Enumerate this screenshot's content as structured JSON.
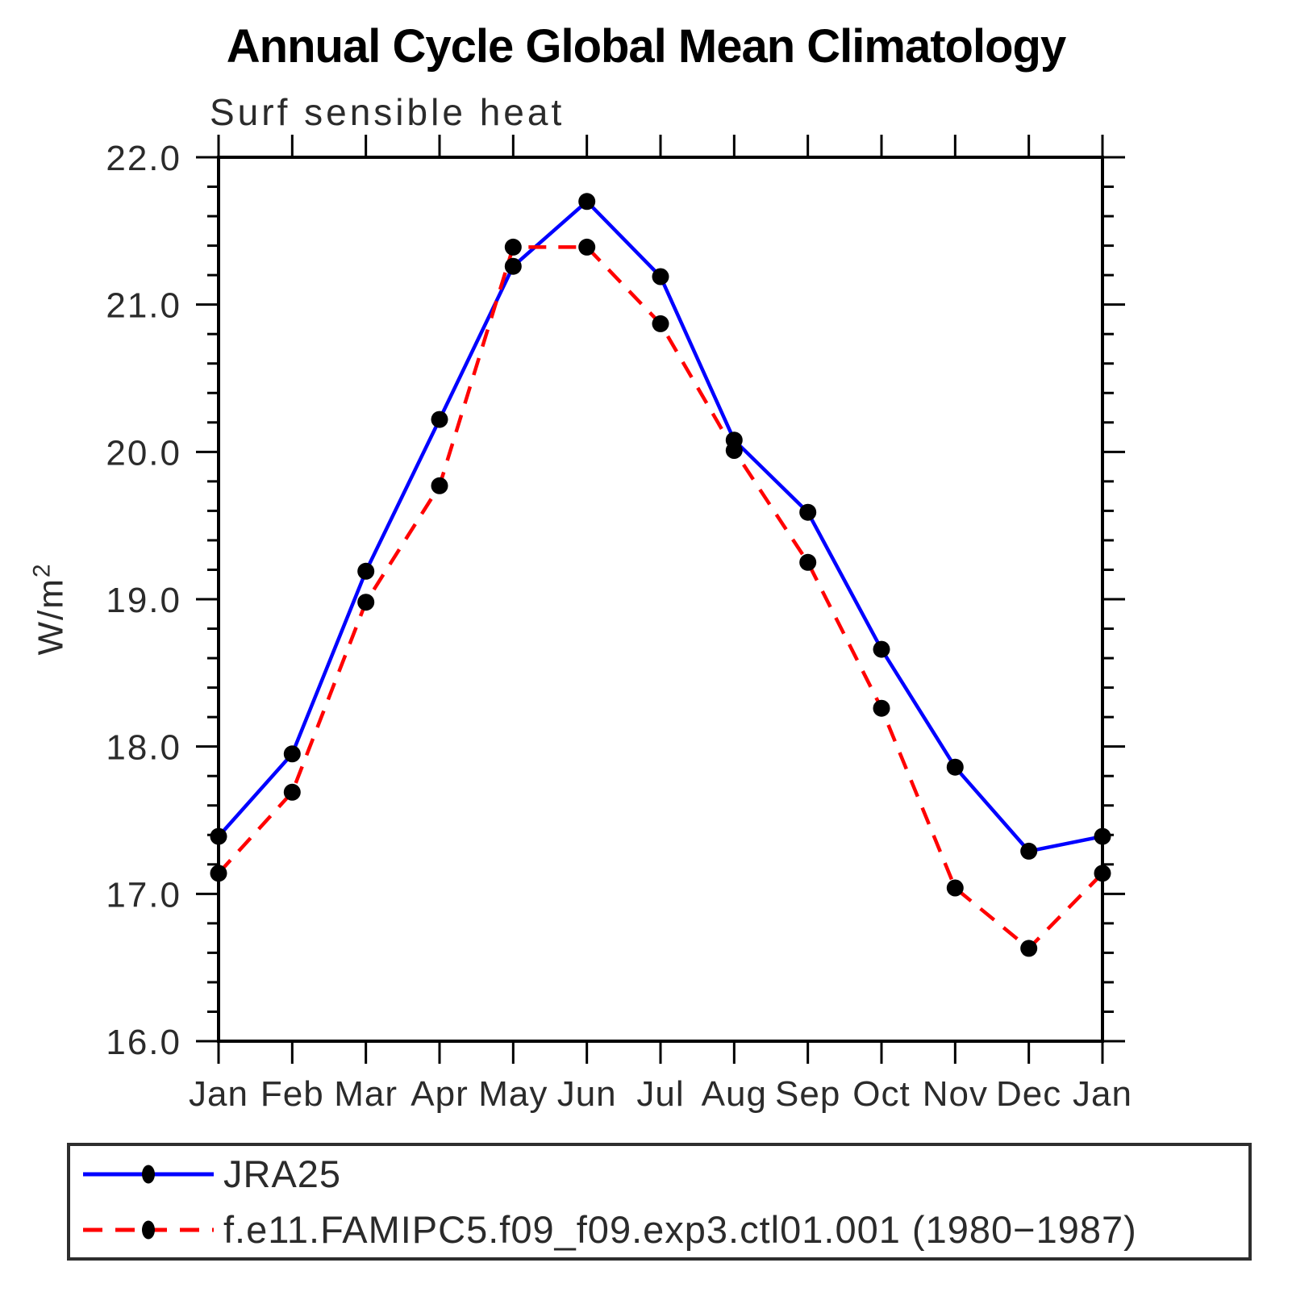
{
  "page": {
    "title": "Annual Cycle Global Mean Climatology",
    "subtitle": "Surf sensible heat",
    "ylabel_base": "W/m",
    "ylabel_exp": "2"
  },
  "chart_data": {
    "type": "line",
    "title": "Annual Cycle Global Mean Climatology",
    "subtitle": "Surf sensible heat",
    "ylabel": "W/m2",
    "xlabel": "",
    "categories": [
      "Jan",
      "Feb",
      "Mar",
      "Apr",
      "May",
      "Jun",
      "Jul",
      "Aug",
      "Sep",
      "Oct",
      "Nov",
      "Dec",
      "Jan"
    ],
    "series": [
      {
        "name": "JRA25",
        "color": "#0000ff",
        "line_style": "solid",
        "marker": "filled-circle",
        "marker_color": "#000000",
        "values": [
          17.39,
          17.95,
          19.19,
          20.22,
          21.26,
          21.7,
          21.19,
          20.08,
          19.59,
          18.66,
          17.86,
          17.29,
          17.39
        ]
      },
      {
        "name": "f.e11.FAMIPC5.f09_f09.exp3.ctl01.001 (1980−1987)",
        "color": "#ff0000",
        "line_style": "dashed",
        "marker": "filled-circle",
        "marker_color": "#000000",
        "values": [
          17.14,
          17.69,
          18.98,
          19.77,
          21.39,
          21.39,
          20.87,
          20.01,
          19.25,
          18.26,
          17.04,
          16.63,
          17.14
        ]
      }
    ],
    "ylim": [
      16.0,
      22.0
    ],
    "ytick_step": 1.0,
    "yminor_step": 0.2,
    "ytick_label_format": "one-decimal",
    "grid": false,
    "axis_ticks": "outward-all-sides",
    "legend_position": "bottom-box"
  }
}
